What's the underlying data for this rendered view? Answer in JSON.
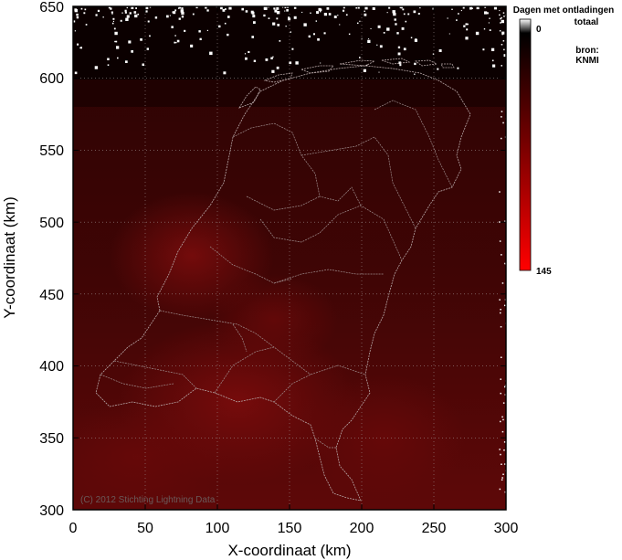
{
  "chart_data": {
    "type": "heatmap",
    "xlabel": "X-coordinaat (km)",
    "ylabel": "Y-coordinaat (km)",
    "xlim": [
      0,
      300
    ],
    "ylim": [
      300,
      650
    ],
    "xticks": [
      "0",
      "50",
      "100",
      "150",
      "200",
      "250",
      "300"
    ],
    "yticks": [
      "300",
      "350",
      "400",
      "450",
      "500",
      "550",
      "600",
      "650"
    ],
    "grid": true,
    "colorbar": {
      "title_line1": "Dagen met ontladingen",
      "title_line2": "totaal",
      "min_label": "0",
      "max_label": "145",
      "min": 0,
      "max": 145,
      "colors": [
        "#ffffff",
        "#000000",
        "#ff0000"
      ]
    },
    "source_line1": "bron:",
    "source_line2": "KNMI",
    "copyright": "(C) 2012 Stichting Lightning Data"
  },
  "colors": {
    "background": "#ffffff",
    "field_dark": "#2a0202",
    "field_mid": "#4a0606",
    "field_bright": "#6e0a0a",
    "outline": "#b7a7a7",
    "gridline": "#9a8a8a"
  }
}
